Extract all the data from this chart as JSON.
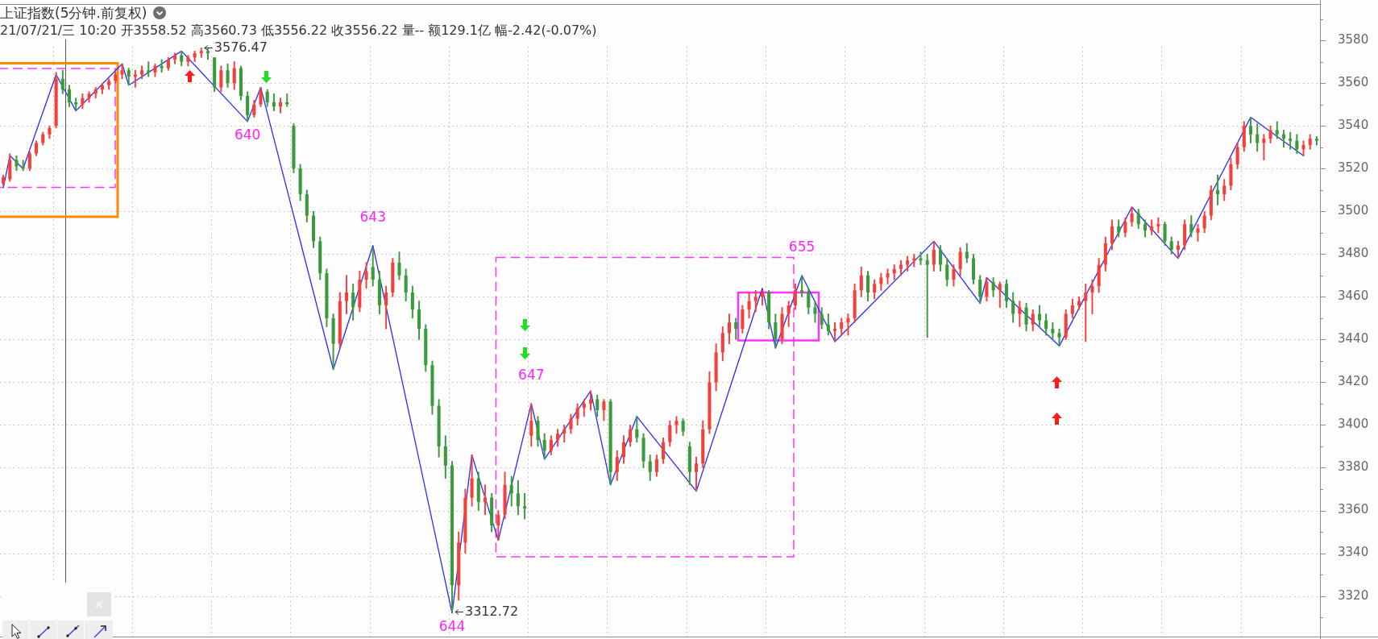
{
  "chart_data": {
    "type": "candlestick",
    "title": "上证指数(5分钟.前复权)",
    "subtitle": "21/07/21/三 10:20 开3558.52 高3560.73 低3556.22 收3556.22 量-- 额129.1亿 幅-2.42(-0.07%)",
    "categories": [
      null,
      null,
      null,
      null,
      null,
      null,
      null,
      null,
      null,
      null,
      null,
      null,
      null,
      null,
      null,
      null,
      null,
      null,
      null,
      null,
      null,
      null,
      null,
      null,
      null,
      null,
      null,
      null,
      null,
      null,
      null,
      null,
      null,
      null,
      null,
      null,
      null,
      null,
      null,
      null,
      null,
      null,
      null,
      null,
      null,
      null,
      null,
      null,
      null,
      null,
      null,
      null,
      null,
      null,
      null,
      null,
      null,
      null,
      null,
      null,
      null,
      null,
      null,
      null,
      null,
      null,
      null,
      null,
      null,
      null,
      null,
      null,
      null,
      null,
      null,
      null,
      null,
      null,
      null,
      null,
      null,
      null,
      null,
      null,
      null,
      null,
      null,
      null,
      null,
      null,
      null,
      null,
      null,
      null,
      null,
      null,
      null,
      null,
      null,
      null,
      null,
      null,
      null,
      null,
      null,
      null,
      null,
      null,
      null,
      null,
      null,
      null,
      null,
      null,
      null,
      null,
      null,
      null,
      null,
      null,
      null,
      null,
      null,
      null,
      null,
      null,
      null,
      null,
      null,
      null,
      null,
      null,
      null,
      null,
      null,
      null,
      null,
      null,
      null,
      null,
      null,
      null,
      null,
      null,
      null,
      null,
      null,
      null,
      null,
      null,
      null,
      null,
      null,
      null,
      null,
      null,
      null,
      null,
      null,
      null,
      null,
      null,
      null,
      null,
      null,
      null,
      null,
      null,
      null,
      null,
      null,
      null,
      null,
      null,
      null,
      null,
      null,
      null,
      null,
      null,
      null,
      null,
      null,
      null,
      null,
      null,
      null,
      null,
      null,
      null,
      null,
      null,
      null,
      null,
      null,
      null,
      null,
      null,
      null,
      null
    ],
    "ohlc": [
      [
        3513,
        3517,
        3512,
        3516
      ],
      [
        3515,
        3527,
        3514,
        3524
      ],
      [
        3524,
        3526,
        3519,
        3521
      ],
      [
        3521,
        3524,
        3519,
        3520
      ],
      [
        3520,
        3528,
        3519,
        3527
      ],
      [
        3527,
        3533,
        3526,
        3532
      ],
      [
        3532,
        3537,
        3531,
        3536
      ],
      [
        3536,
        3540,
        3534,
        3539
      ],
      [
        3540,
        3565,
        3539,
        3562
      ],
      [
        3562,
        3566,
        3555,
        3557
      ],
      [
        3557,
        3559,
        3549,
        3551
      ],
      [
        3551,
        3553,
        3547,
        3550
      ],
      [
        3550,
        3555,
        3548,
        3553
      ],
      [
        3553,
        3556,
        3551,
        3555
      ],
      [
        3555,
        3558,
        3553,
        3557
      ],
      [
        3557,
        3560,
        3555,
        3559
      ],
      [
        3559,
        3562,
        3557,
        3561
      ],
      [
        3561,
        3565,
        3560,
        3564
      ],
      [
        3564,
        3569,
        3562,
        3566
      ],
      [
        3566,
        3567,
        3559,
        3563
      ],
      [
        3563,
        3566,
        3558,
        3564
      ],
      [
        3564,
        3568,
        3562,
        3566
      ],
      [
        3566,
        3570,
        3563,
        3565
      ],
      [
        3565,
        3569,
        3563,
        3568
      ],
      [
        3568,
        3571,
        3565,
        3567
      ],
      [
        3567,
        3572,
        3566,
        3571
      ],
      [
        3571,
        3574,
        3569,
        3573
      ],
      [
        3573,
        3575,
        3568,
        3570
      ],
      [
        3570,
        3573,
        3568,
        3572
      ],
      [
        3572,
        3575,
        3570,
        3574
      ],
      [
        3574,
        3576.47,
        3572,
        3575
      ],
      [
        3575,
        3576,
        3571,
        3574
      ],
      [
        3572,
        3572,
        3556,
        3558
      ],
      [
        3558,
        3568,
        3556,
        3566
      ],
      [
        3566,
        3569,
        3558,
        3560
      ],
      [
        3560,
        3570,
        3557,
        3567
      ],
      [
        3567,
        3568,
        3552,
        3554
      ],
      [
        3554,
        3556,
        3542,
        3545
      ],
      [
        3545,
        3552,
        3544,
        3550
      ],
      [
        3550,
        3558,
        3549,
        3556
      ],
      [
        3556,
        3557,
        3549,
        3551
      ],
      [
        3551,
        3555,
        3547,
        3549
      ],
      [
        3549,
        3553,
        3546,
        3551
      ],
      [
        3551,
        3555,
        3549,
        3550
      ],
      [
        3540,
        3541,
        3518,
        3520
      ],
      [
        3520,
        3522,
        3505,
        3508
      ],
      [
        3508,
        3510,
        3495,
        3498
      ],
      [
        3498,
        3500,
        3483,
        3486
      ],
      [
        3486,
        3488,
        3468,
        3471
      ],
      [
        3471,
        3473,
        3446,
        3450
      ],
      [
        3450,
        3452,
        3426,
        3438
      ],
      [
        3438,
        3462,
        3436,
        3458
      ],
      [
        3458,
        3470,
        3452,
        3462
      ],
      [
        3462,
        3466,
        3449,
        3455
      ],
      [
        3455,
        3472,
        3453,
        3468
      ],
      [
        3468,
        3476,
        3464,
        3472
      ],
      [
        3474,
        3483,
        3465,
        3468
      ],
      [
        3468,
        3472,
        3452,
        3456
      ],
      [
        3456,
        3465,
        3445,
        3462
      ],
      [
        3462,
        3478,
        3460,
        3476
      ],
      [
        3476,
        3481,
        3468,
        3470
      ],
      [
        3470,
        3473,
        3458,
        3462
      ],
      [
        3462,
        3465,
        3450,
        3454
      ],
      [
        3454,
        3458,
        3440,
        3445
      ],
      [
        3445,
        3447,
        3425,
        3428
      ],
      [
        3428,
        3430,
        3405,
        3409
      ],
      [
        3409,
        3412,
        3385,
        3390
      ],
      [
        3390,
        3395,
        3375,
        3381
      ],
      [
        3381,
        3383,
        3312.72,
        3325
      ],
      [
        3325,
        3350,
        3318,
        3345
      ],
      [
        3345,
        3370,
        3340,
        3366
      ],
      [
        3366,
        3386,
        3362,
        3375
      ],
      [
        3375,
        3378,
        3360,
        3364
      ],
      [
        3364,
        3372,
        3358,
        3366
      ],
      [
        3366,
        3368,
        3350,
        3353
      ],
      [
        3353,
        3360,
        3346,
        3358
      ],
      [
        3358,
        3378,
        3356,
        3372
      ],
      [
        3372,
        3376,
        3362,
        3368
      ],
      [
        3368,
        3374,
        3358,
        3362
      ],
      [
        3362,
        3368,
        3356,
        3361
      ],
      [
        3395,
        3410,
        3390,
        3402
      ],
      [
        3402,
        3404,
        3390,
        3393
      ],
      [
        3393,
        3396,
        3384,
        3388
      ],
      [
        3388,
        3395,
        3386,
        3393
      ],
      [
        3393,
        3398,
        3390,
        3396
      ],
      [
        3396,
        3400,
        3392,
        3398
      ],
      [
        3398,
        3405,
        3396,
        3403
      ],
      [
        3403,
        3410,
        3400,
        3408
      ],
      [
        3408,
        3412,
        3404,
        3410
      ],
      [
        3410,
        3416,
        3407,
        3412
      ],
      [
        3412,
        3414,
        3404,
        3407
      ],
      [
        3407,
        3412,
        3402,
        3411
      ],
      [
        3411,
        3412,
        3372,
        3378
      ],
      [
        3378,
        3388,
        3374,
        3385
      ],
      [
        3385,
        3395,
        3382,
        3392
      ],
      [
        3392,
        3400,
        3390,
        3398
      ],
      [
        3398,
        3404,
        3392,
        3394
      ],
      [
        3394,
        3396,
        3380,
        3383
      ],
      [
        3383,
        3386,
        3374,
        3378
      ],
      [
        3378,
        3386,
        3376,
        3384
      ],
      [
        3384,
        3394,
        3382,
        3392
      ],
      [
        3392,
        3402,
        3390,
        3400
      ],
      [
        3400,
        3404,
        3396,
        3402
      ],
      [
        3402,
        3403,
        3395,
        3397
      ],
      [
        3390,
        3392,
        3372,
        3378
      ],
      [
        3378,
        3385,
        3369,
        3382
      ],
      [
        3382,
        3402,
        3380,
        3398
      ],
      [
        3398,
        3425,
        3396,
        3420
      ],
      [
        3420,
        3438,
        3416,
        3434
      ],
      [
        3434,
        3446,
        3430,
        3443
      ],
      [
        3443,
        3452,
        3438,
        3448
      ],
      [
        3448,
        3450,
        3440,
        3445
      ],
      [
        3445,
        3456,
        3443,
        3454
      ],
      [
        3454,
        3462,
        3450,
        3458
      ],
      [
        3458,
        3463,
        3453,
        3460
      ],
      [
        3460,
        3463,
        3456,
        3462
      ],
      [
        3462,
        3463,
        3445,
        3448
      ],
      [
        3448,
        3452,
        3436,
        3440
      ],
      [
        3440,
        3455,
        3438,
        3452
      ],
      [
        3452,
        3458,
        3446,
        3456
      ],
      [
        3456,
        3466,
        3454,
        3463
      ],
      [
        3463,
        3470,
        3460,
        3462
      ],
      [
        3462,
        3464,
        3452,
        3455
      ],
      [
        3455,
        3458,
        3448,
        3452
      ],
      [
        3452,
        3455,
        3445,
        3447
      ],
      [
        3447,
        3452,
        3442,
        3444
      ],
      [
        3444,
        3448,
        3439,
        3445
      ],
      [
        3445,
        3450,
        3442,
        3448
      ],
      [
        3448,
        3452,
        3442,
        3450
      ],
      [
        3450,
        3466,
        3448,
        3463
      ],
      [
        3463,
        3474,
        3460,
        3470
      ],
      [
        3470,
        3472,
        3458,
        3462
      ],
      [
        3462,
        3468,
        3459,
        3466
      ],
      [
        3466,
        3471,
        3463,
        3469
      ],
      [
        3469,
        3473,
        3466,
        3471
      ],
      [
        3471,
        3475,
        3468,
        3473
      ],
      [
        3473,
        3477,
        3470,
        3475
      ],
      [
        3475,
        3479,
        3472,
        3477
      ],
      [
        3477,
        3480,
        3474,
        3478
      ],
      [
        3478,
        3481,
        3475,
        3477
      ],
      [
        3477,
        3480,
        3441,
        3475
      ],
      [
        3475,
        3486,
        3472,
        3482
      ],
      [
        3482,
        3484,
        3472,
        3475
      ],
      [
        3475,
        3478,
        3465,
        3468
      ],
      [
        3468,
        3475,
        3465,
        3473
      ],
      [
        3473,
        3483,
        3470,
        3481
      ],
      [
        3481,
        3485,
        3476,
        3478
      ],
      [
        3478,
        3480,
        3466,
        3468
      ],
      [
        3468,
        3470,
        3457,
        3460
      ],
      [
        3460,
        3469,
        3458,
        3467
      ],
      [
        3467,
        3469,
        3460,
        3463
      ],
      [
        3463,
        3467,
        3455,
        3466
      ],
      [
        3466,
        3468,
        3455,
        3458
      ],
      [
        3458,
        3462,
        3448,
        3452
      ],
      [
        3452,
        3458,
        3446,
        3455
      ],
      [
        3455,
        3457,
        3444,
        3447
      ],
      [
        3447,
        3454,
        3444,
        3452
      ],
      [
        3452,
        3456,
        3446,
        3449
      ],
      [
        3449,
        3452,
        3442,
        3445
      ],
      [
        3445,
        3448,
        3440,
        3443
      ],
      [
        3443,
        3445,
        3437,
        3441
      ],
      [
        3441,
        3454,
        3440,
        3452
      ],
      [
        3452,
        3459,
        3450,
        3456
      ],
      [
        3456,
        3460,
        3454,
        3458
      ],
      [
        3458,
        3466,
        3439,
        3462
      ],
      [
        3462,
        3468,
        3452,
        3465
      ],
      [
        3465,
        3478,
        3462,
        3475
      ],
      [
        3475,
        3488,
        3472,
        3485
      ],
      [
        3485,
        3496,
        3482,
        3493
      ],
      [
        3493,
        3496,
        3488,
        3490
      ],
      [
        3490,
        3497,
        3488,
        3495
      ],
      [
        3495,
        3502,
        3493,
        3499
      ],
      [
        3499,
        3501,
        3492,
        3494
      ],
      [
        3494,
        3496,
        3488,
        3491
      ],
      [
        3491,
        3496,
        3489,
        3493
      ],
      [
        3493,
        3497,
        3490,
        3494
      ],
      [
        3494,
        3495,
        3484,
        3486
      ],
      [
        3486,
        3488,
        3480,
        3482
      ],
      [
        3482,
        3486,
        3478,
        3484
      ],
      [
        3484,
        3496,
        3482,
        3494
      ],
      [
        3494,
        3498,
        3488,
        3490
      ],
      [
        3490,
        3494,
        3486,
        3492
      ],
      [
        3492,
        3500,
        3490,
        3498
      ],
      [
        3498,
        3512,
        3496,
        3510
      ],
      [
        3510,
        3517,
        3503,
        3508
      ],
      [
        3508,
        3515,
        3505,
        3512
      ],
      [
        3512,
        3525,
        3510,
        3522
      ],
      [
        3522,
        3532,
        3520,
        3530
      ],
      [
        3530,
        3542,
        3528,
        3540
      ],
      [
        3540,
        3544,
        3532,
        3536
      ],
      [
        3536,
        3541,
        3528,
        3532
      ],
      [
        3532,
        3536,
        3524,
        3534
      ],
      [
        3534,
        3540,
        3532,
        3538
      ],
      [
        3538,
        3542,
        3534,
        3536
      ],
      [
        3536,
        3538,
        3530,
        3534
      ],
      [
        3534,
        3537,
        3529,
        3533
      ],
      [
        3533,
        3536,
        3527,
        3529
      ],
      [
        3529,
        3533,
        3526,
        3531
      ],
      [
        3531,
        3536,
        3529,
        3534
      ],
      [
        3534,
        3535,
        3531,
        3533
      ]
    ],
    "colors": [
      "#f2413d",
      "#f2413d",
      "#3b9a3b",
      "#3b9a3b",
      "#f2413d",
      "#f2413d",
      "#f2413d",
      "#f2413d",
      "#f2413d",
      "#3b9a3b",
      "#3b9a3b",
      "#3b9a3b",
      "#f2413d",
      "#f2413d",
      "#f2413d",
      "#f2413d",
      "#f2413d",
      "#f2413d",
      "#f2413d",
      "#3b9a3b",
      "#f2413d",
      "#f2413d",
      "#3b9a3b",
      "#f2413d",
      "#3b9a3b",
      "#f2413d",
      "#f2413d",
      "#3b9a3b",
      "#f2413d",
      "#f2413d",
      "#f2413d",
      "#3b9a3b",
      "#3b9a3b",
      "#f2413d",
      "#3b9a3b",
      "#f2413d",
      "#3b9a3b",
      "#3b9a3b",
      "#f2413d",
      "#f2413d",
      "#3b9a3b",
      "#3b9a3b",
      "#f2413d",
      "#3b9a3b",
      "#3b9a3b",
      "#3b9a3b",
      "#3b9a3b",
      "#3b9a3b",
      "#3b9a3b",
      "#3b9a3b",
      "#3b9a3b",
      "#f2413d",
      "#f2413d",
      "#3b9a3b",
      "#f2413d",
      "#f2413d",
      "#3b9a3b",
      "#3b9a3b",
      "#f2413d",
      "#f2413d",
      "#3b9a3b",
      "#3b9a3b",
      "#3b9a3b",
      "#3b9a3b",
      "#3b9a3b",
      "#3b9a3b",
      "#3b9a3b",
      "#3b9a3b",
      "#3b9a3b",
      "#f2413d",
      "#f2413d",
      "#f2413d",
      "#3b9a3b",
      "#f2413d",
      "#3b9a3b",
      "#f2413d",
      "#f2413d",
      "#3b9a3b",
      "#3b9a3b",
      "#3b9a3b",
      "#f2413d",
      "#3b9a3b",
      "#3b9a3b",
      "#f2413d",
      "#f2413d",
      "#f2413d",
      "#f2413d",
      "#f2413d",
      "#f2413d",
      "#f2413d",
      "#3b9a3b",
      "#f2413d",
      "#3b9a3b",
      "#f2413d",
      "#f2413d",
      "#f2413d",
      "#3b9a3b",
      "#3b9a3b",
      "#3b9a3b",
      "#f2413d",
      "#f2413d",
      "#f2413d",
      "#f2413d",
      "#3b9a3b",
      "#3b9a3b",
      "#f2413d",
      "#f2413d",
      "#f2413d",
      "#f2413d",
      "#f2413d",
      "#f2413d",
      "#3b9a3b",
      "#f2413d",
      "#f2413d",
      "#f2413d",
      "#f2413d",
      "#3b9a3b",
      "#3b9a3b",
      "#f2413d",
      "#f2413d",
      "#f2413d",
      "#3b9a3b",
      "#3b9a3b",
      "#3b9a3b",
      "#3b9a3b",
      "#3b9a3b",
      "#f2413d",
      "#f2413d",
      "#f2413d",
      "#f2413d",
      "#f2413d",
      "#3b9a3b",
      "#f2413d",
      "#f2413d",
      "#f2413d",
      "#f2413d",
      "#f2413d",
      "#f2413d",
      "#f2413d",
      "#3b9a3b",
      "#3b9a3b",
      "#f2413d",
      "#3b9a3b",
      "#3b9a3b",
      "#f2413d",
      "#f2413d",
      "#3b9a3b",
      "#3b9a3b",
      "#3b9a3b",
      "#f2413d",
      "#3b9a3b",
      "#f2413d",
      "#3b9a3b",
      "#3b9a3b",
      "#f2413d",
      "#3b9a3b",
      "#f2413d",
      "#3b9a3b",
      "#3b9a3b",
      "#3b9a3b",
      "#3b9a3b",
      "#f2413d",
      "#f2413d",
      "#f2413d",
      "#f2413d",
      "#f2413d",
      "#f2413d",
      "#f2413d",
      "#f2413d",
      "#3b9a3b",
      "#f2413d",
      "#f2413d",
      "#3b9a3b",
      "#3b9a3b",
      "#f2413d",
      "#f2413d",
      "#3b9a3b",
      "#3b9a3b",
      "#f2413d",
      "#f2413d",
      "#3b9a3b",
      "#f2413d",
      "#f2413d",
      "#f2413d",
      "#3b9a3b",
      "#f2413d",
      "#f2413d",
      "#f2413d",
      "#f2413d",
      "#3b9a3b",
      "#3b9a3b",
      "#f2413d",
      "#f2413d",
      "#3b9a3b",
      "#3b9a3b",
      "#3b9a3b",
      "#3b9a3b",
      "#f2413d",
      "#f2413d",
      "#3b9a3b"
    ],
    "value_labels": [
      null,
      null,
      null,
      null,
      null,
      null,
      null,
      null,
      null,
      null,
      null,
      null,
      null,
      null,
      null,
      null,
      null,
      null,
      null,
      null,
      null,
      null,
      null,
      null,
      null,
      null,
      null,
      null,
      null,
      null,
      "3576.47",
      null,
      null,
      null,
      null,
      null,
      null,
      null,
      null,
      null,
      null,
      null,
      null,
      null,
      null,
      null,
      null,
      null,
      null,
      null,
      null,
      null,
      null,
      null,
      null,
      null,
      null,
      null,
      null,
      null,
      null,
      null,
      null,
      null,
      null,
      null,
      null,
      null,
      "3312.72",
      null,
      null,
      null,
      null,
      null,
      null,
      null,
      null,
      null,
      null,
      null,
      null,
      null,
      null,
      null,
      null,
      null,
      null,
      null,
      null,
      null,
      null,
      null,
      null,
      null,
      null,
      null,
      null,
      null,
      null,
      null,
      null,
      null,
      null,
      null,
      null,
      null,
      null,
      null,
      null,
      null,
      null,
      null,
      null,
      null,
      null,
      null,
      null,
      null,
      null,
      null,
      null,
      null,
      null,
      null,
      null,
      null,
      null,
      null,
      null,
      null,
      null,
      null,
      null,
      null,
      null,
      null,
      null,
      null,
      null,
      null,
      null,
      null,
      null,
      null,
      null,
      null,
      null,
      null,
      null,
      null,
      null,
      null,
      null,
      null,
      null,
      null,
      null,
      null,
      null,
      null,
      null,
      null,
      null,
      null,
      null,
      null,
      null,
      null,
      null,
      null,
      null,
      null,
      null,
      null,
      null,
      null,
      null,
      null,
      null,
      null,
      null,
      null,
      null,
      null,
      null,
      null,
      null,
      null,
      null,
      null,
      null,
      null,
      null,
      null,
      null,
      null,
      null,
      null,
      null,
      null
    ],
    "series": [
      {
        "type": "line",
        "color": "#2a2aff",
        "values": [
          3511,
          3526,
          null,
          3520,
          null,
          null,
          null,
          null,
          3564,
          null,
          null,
          3547,
          null,
          null,
          null,
          null,
          null,
          null,
          3569,
          3559,
          null,
          null,
          null,
          null,
          null,
          null,
          null,
          3575,
          null,
          null,
          null,
          null,
          null,
          null,
          null,
          null,
          null,
          3542,
          null,
          3558,
          null,
          null,
          null,
          null,
          null,
          null,
          null,
          null,
          null,
          null,
          3426,
          null,
          null,
          null,
          null,
          null,
          3484,
          null,
          null,
          null,
          null,
          null,
          null,
          null,
          null,
          null,
          null,
          null,
          3312,
          null,
          null,
          3386,
          null,
          null,
          null,
          3346,
          null,
          null,
          null,
          null,
          3410,
          null,
          3384,
          null,
          null,
          null,
          null,
          null,
          null,
          3416,
          null,
          null,
          3372,
          null,
          null,
          null,
          3404,
          null,
          null,
          null,
          null,
          null,
          null,
          null,
          null,
          3369,
          null,
          null,
          null,
          null,
          null,
          null,
          null,
          null,
          null,
          3464,
          null,
          3436,
          null,
          null,
          null,
          3470,
          null,
          null,
          null,
          null,
          3439,
          null,
          null,
          null,
          null,
          null,
          null,
          null,
          null,
          null,
          null,
          null,
          null,
          null,
          null,
          3486,
          null,
          null,
          null,
          null,
          null,
          null,
          3457,
          3469,
          null,
          null,
          null,
          null,
          null,
          null,
          null,
          null,
          null,
          null,
          3437,
          null,
          null,
          null,
          null,
          null,
          null,
          null,
          null,
          null,
          null,
          3502,
          null,
          null,
          null,
          null,
          null,
          null,
          3478,
          null,
          null,
          null,
          null,
          null,
          null,
          null,
          null,
          null,
          null,
          3544,
          null,
          null,
          null,
          null,
          null,
          null,
          null,
          3526,
          null,
          null
        ]
      }
    ],
    "ylim": [
      3301,
      3597
    ],
    "yticks": [
      {
        "value": 3310,
        "label": null
      },
      3320,
      {
        "value": 3330,
        "label": null
      },
      3340,
      {
        "value": 3350,
        "label": null
      },
      3360,
      {
        "value": 3370,
        "label": null
      },
      3380,
      {
        "value": 3390,
        "label": null
      },
      3400,
      {
        "value": 3410,
        "label": null
      },
      3420,
      {
        "value": 3430,
        "label": null
      },
      3440,
      {
        "value": 3450,
        "label": null
      },
      3460,
      {
        "value": 3470,
        "label": null
      },
      3480,
      {
        "value": 3490,
        "label": null
      },
      3500,
      {
        "value": 3510,
        "label": null
      },
      3520,
      {
        "value": 3530,
        "label": null
      },
      3540,
      {
        "value": 3550,
        "label": null
      },
      3560,
      {
        "value": 3570,
        "label": null
      },
      3580,
      {
        "value": 3590,
        "label": null
      }
    ],
    "grid": "y",
    "tick_labels": "y",
    "annotations": [
      {
        "text": "640",
        "y": 3542
      },
      {
        "text": "643",
        "y": 3484
      },
      {
        "text": "644",
        "y": 3312
      },
      {
        "text": "647",
        "y": 3410
      },
      {
        "text": "655",
        "y": 3470
      }
    ]
  }
}
